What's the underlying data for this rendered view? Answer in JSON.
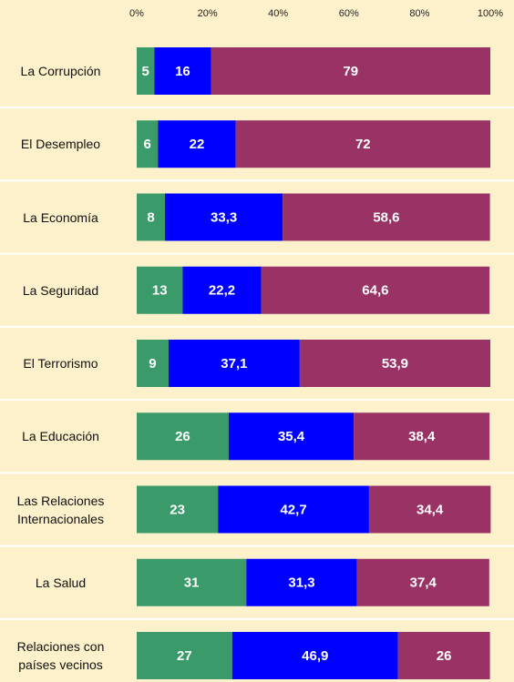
{
  "chart_data": {
    "type": "stacked-bar-horizontal",
    "categories": [
      "La Corrupción",
      "El Desempleo",
      "La Economía",
      "La Seguridad",
      "El Terrorismo",
      "La Educación",
      "Las Relaciones\nInternacionales",
      "La Salud",
      "Relaciones con\npaíses vecinos"
    ],
    "series": [
      {
        "color": "#3a9a6a",
        "values": [
          5,
          6,
          8,
          13,
          9,
          26,
          23,
          31,
          27
        ],
        "value_labels": [
          "5",
          "6",
          "8",
          "13",
          "9",
          "26",
          "23",
          "31",
          "27"
        ]
      },
      {
        "color": "#0000ff",
        "values": [
          16,
          22,
          33.3,
          22.2,
          37.1,
          35.4,
          42.7,
          31.3,
          46.9
        ],
        "value_labels": [
          "16",
          "22",
          "33,3",
          "22,2",
          "37,1",
          "35,4",
          "42,7",
          "31,3",
          "46,9"
        ]
      },
      {
        "color": "#993366",
        "values": [
          79,
          72,
          58.6,
          64.6,
          53.9,
          38.4,
          34.4,
          37.4,
          26
        ],
        "value_labels": [
          "79",
          "72",
          "58,6",
          "64,6",
          "53,9",
          "38,4",
          "34,4",
          "37,4",
          "26"
        ]
      }
    ],
    "xlim": [
      0,
      100
    ],
    "xticks": [
      {
        "value": 0,
        "label": "0%"
      },
      {
        "value": 20,
        "label": "20%"
      },
      {
        "value": 40,
        "label": "40%"
      },
      {
        "value": 60,
        "label": "60%"
      },
      {
        "value": 80,
        "label": "80%"
      },
      {
        "value": 100,
        "label": "100%"
      }
    ]
  }
}
